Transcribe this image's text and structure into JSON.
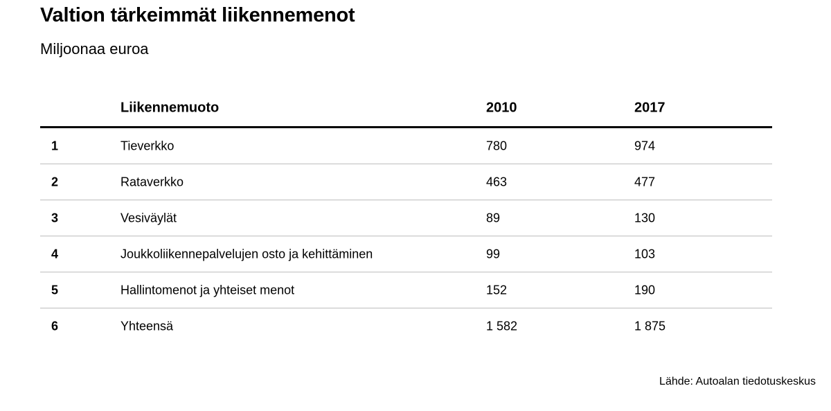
{
  "chart_data": {
    "type": "table",
    "title": "Valtion tärkeimmät liikennemenot",
    "subtitle": "Miljoonaa euroa",
    "columns": [
      "",
      "Liikennemuoto",
      "2010",
      "2017"
    ],
    "rows": [
      {
        "rank": "1",
        "name": "Tieverkko",
        "y2010": "780",
        "y2017": "974"
      },
      {
        "rank": "2",
        "name": "Rataverkko",
        "y2010": "463",
        "y2017": "477"
      },
      {
        "rank": "3",
        "name": "Vesiväylät",
        "y2010": "89",
        "y2017": "130"
      },
      {
        "rank": "4",
        "name": "Joukkoliikennepalvelujen osto ja kehittäminen",
        "y2010": "99",
        "y2017": "103"
      },
      {
        "rank": "5",
        "name": "Hallintomenot ja yhteiset menot",
        "y2010": "152",
        "y2017": "190"
      },
      {
        "rank": "6",
        "name": "Yhteensä",
        "y2010": "1 582",
        "y2017": "1 875"
      }
    ],
    "source": "Lähde: Autoalan tiedotuskeskus"
  }
}
